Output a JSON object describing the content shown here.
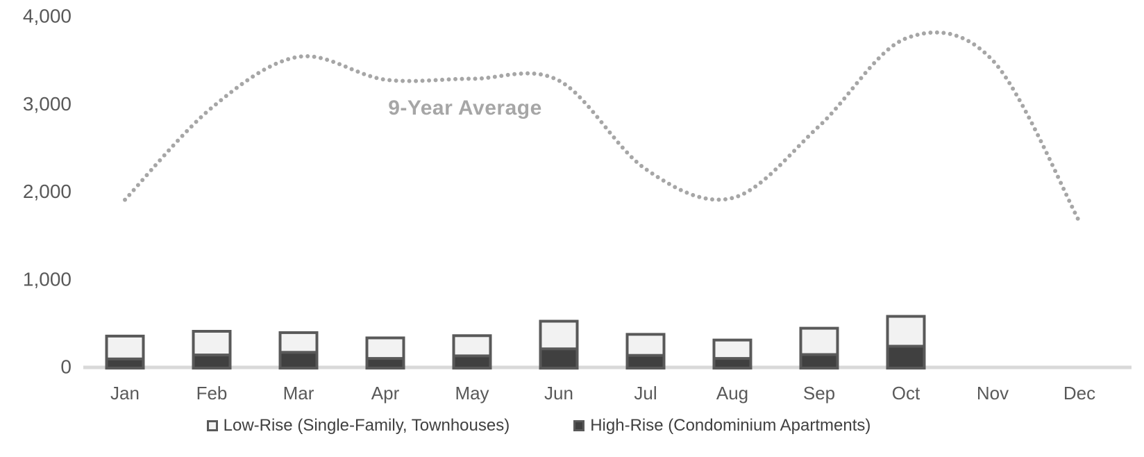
{
  "chart": {
    "annotation": "9-Year Average",
    "legend": [
      {
        "label": "Low-Rise (Single-Family, Townhouses)",
        "series": "low_rise",
        "swatch": "light-outlined-square"
      },
      {
        "label": "High-Rise (Condominium Apartments)",
        "series": "high_rise",
        "swatch": "dark-filled-square"
      }
    ]
  },
  "chart_data": {
    "type": "combo",
    "subtype": "stacked-bars-plus-dotted-line",
    "categories": [
      "Jan",
      "Feb",
      "Mar",
      "Apr",
      "May",
      "Jun",
      "Jul",
      "Aug",
      "Sep",
      "Oct",
      "Nov",
      "Dec"
    ],
    "bar_series": [
      {
        "name": "High-Rise (Condominium Apartments)",
        "stack_position": "bottom",
        "values": [
          85,
          130,
          160,
          90,
          120,
          200,
          125,
          90,
          135,
          230,
          0,
          0
        ]
      },
      {
        "name": "Low-Rise (Single-Family, Townhouses)",
        "stack_position": "top",
        "values": [
          260,
          270,
          225,
          235,
          230,
          315,
          240,
          210,
          300,
          340,
          0,
          0
        ]
      }
    ],
    "bar_totals": [
      345,
      400,
      385,
      325,
      350,
      515,
      365,
      300,
      435,
      570,
      0,
      0
    ],
    "line_series": {
      "name": "9-Year Average",
      "style": "dotted-smooth",
      "values": [
        1900,
        2950,
        3530,
        3270,
        3280,
        3260,
        2250,
        1920,
        2740,
        3740,
        3490,
        1650
      ]
    },
    "yticks": {
      "values": [
        0,
        1000,
        2000,
        3000,
        4000
      ],
      "labels": [
        "0",
        "1,000",
        "2,000",
        "3,000",
        "4,000"
      ]
    },
    "ylim": [
      0,
      4000
    ],
    "grid": false,
    "legend_position": "bottom",
    "annotation": {
      "text": "9-Year Average"
    }
  },
  "colors": {
    "bar_border": "#595959",
    "high_rise_fill": "#404040",
    "low_rise_fill": "#f2f2f2",
    "line_dots": "#a6a6a6",
    "annotation_text": "#a6a6a6",
    "axis_line": "#d9d9d9",
    "tick_label": "#595959",
    "legend_text": "#404040",
    "background": "#ffffff"
  }
}
